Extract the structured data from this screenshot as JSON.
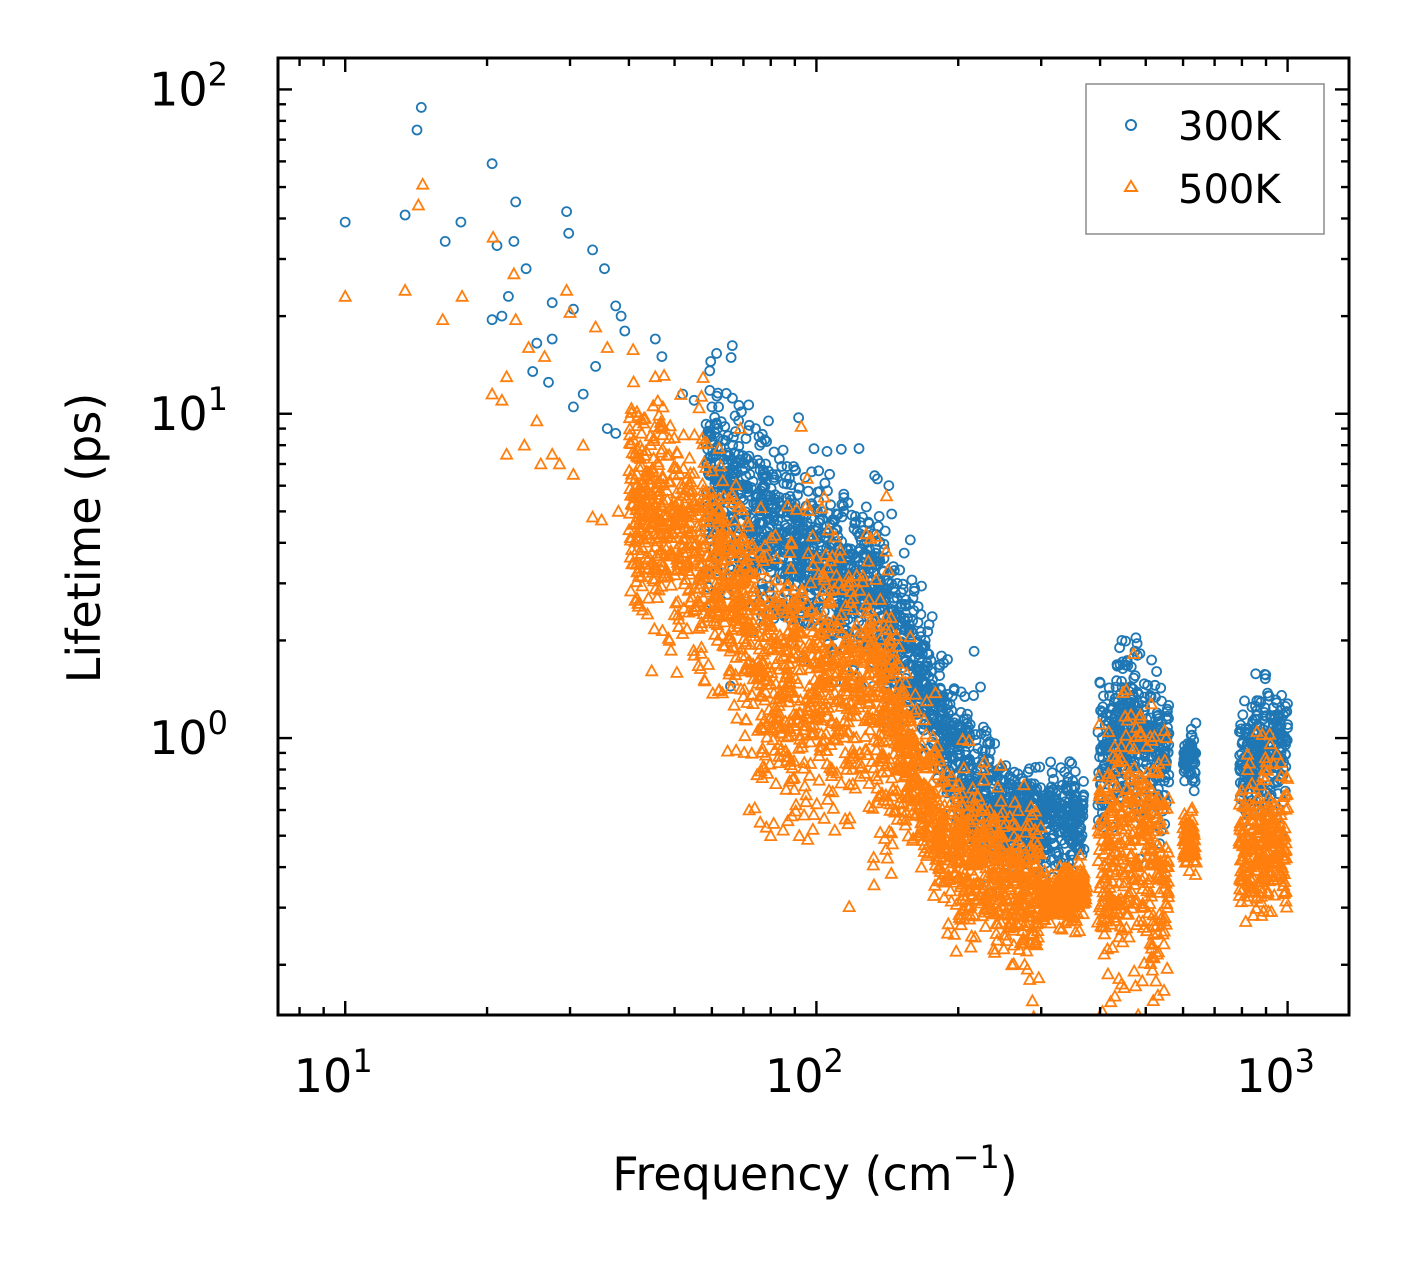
{
  "chart_data": {
    "type": "scatter",
    "title": "",
    "xlabel": "Frequency (cm",
    "xlabel_sup": "−1",
    "xlabel_close": ")",
    "ylabel": "Lifetime (ps)",
    "xscale": "log",
    "yscale": "log",
    "xlim": [
      7.2,
      1350
    ],
    "ylim": [
      0.14,
      125
    ],
    "x_ticks": [
      {
        "value": 10,
        "base": "10",
        "exp": "1"
      },
      {
        "value": 100,
        "base": "10",
        "exp": "2"
      },
      {
        "value": 1000,
        "base": "10",
        "exp": "3"
      }
    ],
    "y_ticks": [
      {
        "value": 1,
        "base": "10",
        "exp": "0"
      },
      {
        "value": 10,
        "base": "10",
        "exp": "1"
      },
      {
        "value": 100,
        "base": "10",
        "exp": "2"
      }
    ],
    "legend_position": "top-right",
    "series": [
      {
        "name": "300K",
        "marker": "circle",
        "color": "#1f77b4",
        "profile": [
          {
            "x": 40,
            "y": 9.0
          },
          {
            "x": 60,
            "y": 6.3
          },
          {
            "x": 80,
            "y": 4.5
          },
          {
            "x": 100,
            "y": 3.5
          },
          {
            "x": 130,
            "y": 2.8
          },
          {
            "x": 160,
            "y": 1.8
          },
          {
            "x": 190,
            "y": 0.95
          },
          {
            "x": 230,
            "y": 0.62
          },
          {
            "x": 300,
            "y": 0.55
          },
          {
            "x": 370,
            "y": 0.6
          },
          {
            "x": 420,
            "y": 1.0
          },
          {
            "x": 470,
            "y": 1.1
          },
          {
            "x": 540,
            "y": 0.85
          },
          {
            "x": 640,
            "y": 0.9
          },
          {
            "x": 800,
            "y": 0.8
          },
          {
            "x": 1000,
            "y": 1.0
          }
        ],
        "points": [
          {
            "x": 10,
            "y": 39
          },
          {
            "x": 13.4,
            "y": 41
          },
          {
            "x": 14.2,
            "y": 75
          },
          {
            "x": 14.5,
            "y": 88
          },
          {
            "x": 16.3,
            "y": 34
          },
          {
            "x": 17.6,
            "y": 39
          },
          {
            "x": 20.5,
            "y": 59
          },
          {
            "x": 21,
            "y": 33
          },
          {
            "x": 22.8,
            "y": 34
          },
          {
            "x": 23,
            "y": 45
          },
          {
            "x": 24.2,
            "y": 28
          },
          {
            "x": 20.5,
            "y": 19.5
          },
          {
            "x": 21.5,
            "y": 20
          },
          {
            "x": 22.2,
            "y": 23
          },
          {
            "x": 27.5,
            "y": 22
          },
          {
            "x": 29.5,
            "y": 42
          },
          {
            "x": 29.8,
            "y": 36
          },
          {
            "x": 30.5,
            "y": 21
          },
          {
            "x": 33.5,
            "y": 32
          },
          {
            "x": 35.5,
            "y": 28
          },
          {
            "x": 37.5,
            "y": 21.5
          },
          {
            "x": 38.5,
            "y": 20
          },
          {
            "x": 39.2,
            "y": 18
          },
          {
            "x": 25.5,
            "y": 16.5
          },
          {
            "x": 27.5,
            "y": 17
          },
          {
            "x": 25,
            "y": 13.5
          },
          {
            "x": 27,
            "y": 12.5
          },
          {
            "x": 30.5,
            "y": 10.5
          },
          {
            "x": 32,
            "y": 11.5
          },
          {
            "x": 34,
            "y": 14
          },
          {
            "x": 36,
            "y": 9
          },
          {
            "x": 37.5,
            "y": 8.7
          },
          {
            "x": 45.5,
            "y": 17
          },
          {
            "x": 47,
            "y": 15
          },
          {
            "x": 52,
            "y": 11.5
          },
          {
            "x": 55,
            "y": 11
          },
          {
            "x": 60,
            "y": 10.5
          },
          {
            "x": 62,
            "y": 10.5
          },
          {
            "x": 78,
            "y": 7
          },
          {
            "x": 96,
            "y": 4.3
          },
          {
            "x": 108,
            "y": 4.0
          },
          {
            "x": 127,
            "y": 3.6
          },
          {
            "x": 150,
            "y": 2.4
          },
          {
            "x": 160,
            "y": 2.3
          },
          {
            "x": 200,
            "y": 1.1
          },
          {
            "x": 212,
            "y": 1.1
          },
          {
            "x": 260,
            "y": 0.75
          },
          {
            "x": 275,
            "y": 0.7
          },
          {
            "x": 445,
            "y": 2.0
          },
          {
            "x": 440,
            "y": 1.9
          },
          {
            "x": 480,
            "y": 1.8
          },
          {
            "x": 540,
            "y": 1.3
          },
          {
            "x": 910,
            "y": 1.35
          },
          {
            "x": 1000,
            "y": 1.1
          },
          {
            "x": 260,
            "y": 0.42
          }
        ],
        "bands": [
          {
            "xmin": 58,
            "xmax": 70,
            "y_center": 5.8,
            "y_spread": 0.28
          },
          {
            "xmin": 70,
            "xmax": 160,
            "y_center": 3.1,
            "y_spread": 0.25
          },
          {
            "xmin": 160,
            "xmax": 240,
            "y_center": 0.85,
            "y_spread": 0.2
          },
          {
            "xmin": 240,
            "xmax": 370,
            "y_center": 0.56,
            "y_spread": 0.13
          },
          {
            "xmin": 395,
            "xmax": 560,
            "y_center": 0.95,
            "y_spread": 0.2
          },
          {
            "xmin": 600,
            "xmax": 640,
            "y_center": 0.88,
            "y_spread": 0.08
          },
          {
            "xmin": 790,
            "xmax": 1000,
            "y_center": 0.85,
            "y_spread": 0.17
          }
        ]
      },
      {
        "name": "500K",
        "marker": "triangle",
        "color": "#ff7f0e",
        "profile": [
          {
            "x": 40,
            "y": 5.5
          },
          {
            "x": 60,
            "y": 3.5
          },
          {
            "x": 70,
            "y": 2.6
          },
          {
            "x": 80,
            "y": 1.6
          },
          {
            "x": 100,
            "y": 1.5
          },
          {
            "x": 130,
            "y": 1.5
          },
          {
            "x": 160,
            "y": 0.8
          },
          {
            "x": 190,
            "y": 0.45
          },
          {
            "x": 240,
            "y": 0.4
          },
          {
            "x": 300,
            "y": 0.32
          },
          {
            "x": 370,
            "y": 0.33
          },
          {
            "x": 420,
            "y": 0.4
          },
          {
            "x": 470,
            "y": 0.55
          },
          {
            "x": 540,
            "y": 0.38
          },
          {
            "x": 620,
            "y": 0.5
          },
          {
            "x": 800,
            "y": 0.45
          },
          {
            "x": 1000,
            "y": 0.5
          }
        ],
        "points": [
          {
            "x": 10,
            "y": 23
          },
          {
            "x": 13.4,
            "y": 24
          },
          {
            "x": 14.3,
            "y": 44
          },
          {
            "x": 14.6,
            "y": 51
          },
          {
            "x": 16.1,
            "y": 19.5
          },
          {
            "x": 17.7,
            "y": 23
          },
          {
            "x": 20.6,
            "y": 35
          },
          {
            "x": 22.8,
            "y": 27
          },
          {
            "x": 23,
            "y": 19.5
          },
          {
            "x": 24.5,
            "y": 16
          },
          {
            "x": 26.5,
            "y": 15
          },
          {
            "x": 29.5,
            "y": 24
          },
          {
            "x": 30,
            "y": 20.5
          },
          {
            "x": 34,
            "y": 18.5
          },
          {
            "x": 36,
            "y": 16
          },
          {
            "x": 20.5,
            "y": 11.5
          },
          {
            "x": 21.5,
            "y": 11
          },
          {
            "x": 22,
            "y": 13
          },
          {
            "x": 22,
            "y": 7.5
          },
          {
            "x": 24,
            "y": 8
          },
          {
            "x": 25.5,
            "y": 9.5
          },
          {
            "x": 26,
            "y": 7
          },
          {
            "x": 27.5,
            "y": 7.5
          },
          {
            "x": 28.5,
            "y": 7
          },
          {
            "x": 30.5,
            "y": 6.5
          },
          {
            "x": 32,
            "y": 8
          },
          {
            "x": 33.5,
            "y": 4.8
          },
          {
            "x": 35,
            "y": 4.7
          },
          {
            "x": 38,
            "y": 5
          },
          {
            "x": 42,
            "y": 2.6
          },
          {
            "x": 44,
            "y": 2.7
          },
          {
            "x": 45.5,
            "y": 13
          },
          {
            "x": 47,
            "y": 9
          },
          {
            "x": 50,
            "y": 2.4
          },
          {
            "x": 52,
            "y": 2.1
          },
          {
            "x": 55,
            "y": 1.8
          },
          {
            "x": 58,
            "y": 1.5
          },
          {
            "x": 62,
            "y": 1.4
          },
          {
            "x": 72,
            "y": 0.6
          },
          {
            "x": 76,
            "y": 0.55
          },
          {
            "x": 80,
            "y": 0.5
          },
          {
            "x": 85,
            "y": 0.52
          },
          {
            "x": 92,
            "y": 0.5
          },
          {
            "x": 190,
            "y": 0.25
          },
          {
            "x": 198,
            "y": 0.22
          },
          {
            "x": 260,
            "y": 0.2
          },
          {
            "x": 430,
            "y": 0.16
          },
          {
            "x": 450,
            "y": 0.17
          },
          {
            "x": 520,
            "y": 0.21
          },
          {
            "x": 1000,
            "y": 0.75
          }
        ],
        "bands": [
          {
            "xmin": 40,
            "xmax": 70,
            "y_center": 3.8,
            "y_spread": 0.3
          },
          {
            "xmin": 70,
            "xmax": 150,
            "y_center": 1.45,
            "y_spread": 0.38
          },
          {
            "xmin": 150,
            "xmax": 200,
            "y_center": 0.55,
            "y_spread": 0.22
          },
          {
            "xmin": 200,
            "xmax": 300,
            "y_center": 0.38,
            "y_spread": 0.2
          },
          {
            "xmin": 300,
            "xmax": 375,
            "y_center": 0.32,
            "y_spread": 0.08
          },
          {
            "xmin": 395,
            "xmax": 560,
            "y_center": 0.38,
            "y_spread": 0.35
          },
          {
            "xmin": 600,
            "xmax": 640,
            "y_center": 0.5,
            "y_spread": 0.08
          },
          {
            "xmin": 790,
            "xmax": 1000,
            "y_center": 0.4,
            "y_spread": 0.2
          }
        ]
      }
    ]
  }
}
